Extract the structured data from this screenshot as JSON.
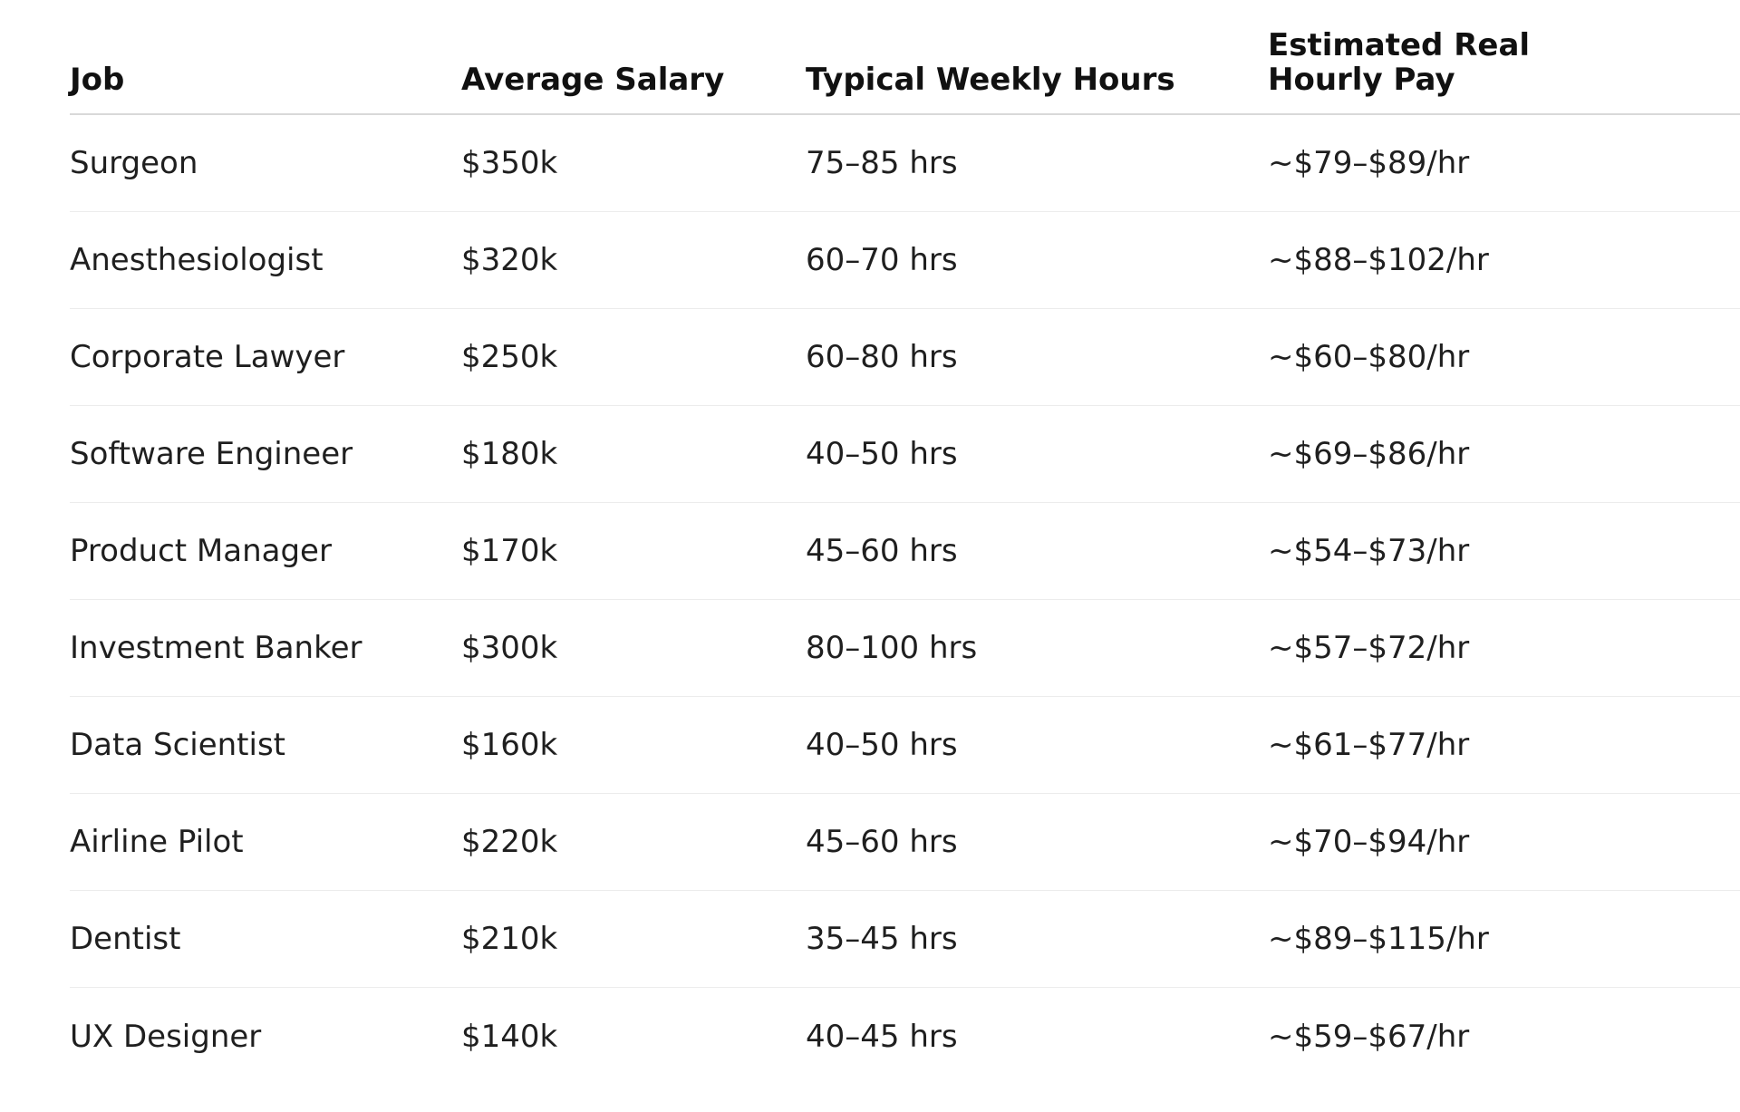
{
  "table": {
    "headers": [
      "Job",
      "Average Salary",
      "Typical Weekly Hours",
      "Estimated Real Hourly Pay"
    ],
    "rows": [
      [
        "Surgeon",
        "$350k",
        "75–85 hrs",
        "~$79–$89/hr"
      ],
      [
        "Anesthesiologist",
        "$320k",
        "60–70 hrs",
        "~$88–$102/hr"
      ],
      [
        "Corporate Lawyer",
        "$250k",
        "60–80 hrs",
        "~$60–$80/hr"
      ],
      [
        "Software Engineer",
        "$180k",
        "40–50 hrs",
        "~$69–$86/hr"
      ],
      [
        "Product Manager",
        "$170k",
        "45–60 hrs",
        "~$54–$73/hr"
      ],
      [
        "Investment Banker",
        "$300k",
        "80–100 hrs",
        "~$57–$72/hr"
      ],
      [
        "Data Scientist",
        "$160k",
        "40–50 hrs",
        "~$61–$77/hr"
      ],
      [
        "Airline Pilot",
        "$220k",
        "45–60 hrs",
        "~$70–$94/hr"
      ],
      [
        "Dentist",
        "$210k",
        "35–45 hrs",
        "~$89–$115/hr"
      ],
      [
        "UX Designer",
        "$140k",
        "40–45 hrs",
        "~$59–$67/hr"
      ]
    ]
  }
}
